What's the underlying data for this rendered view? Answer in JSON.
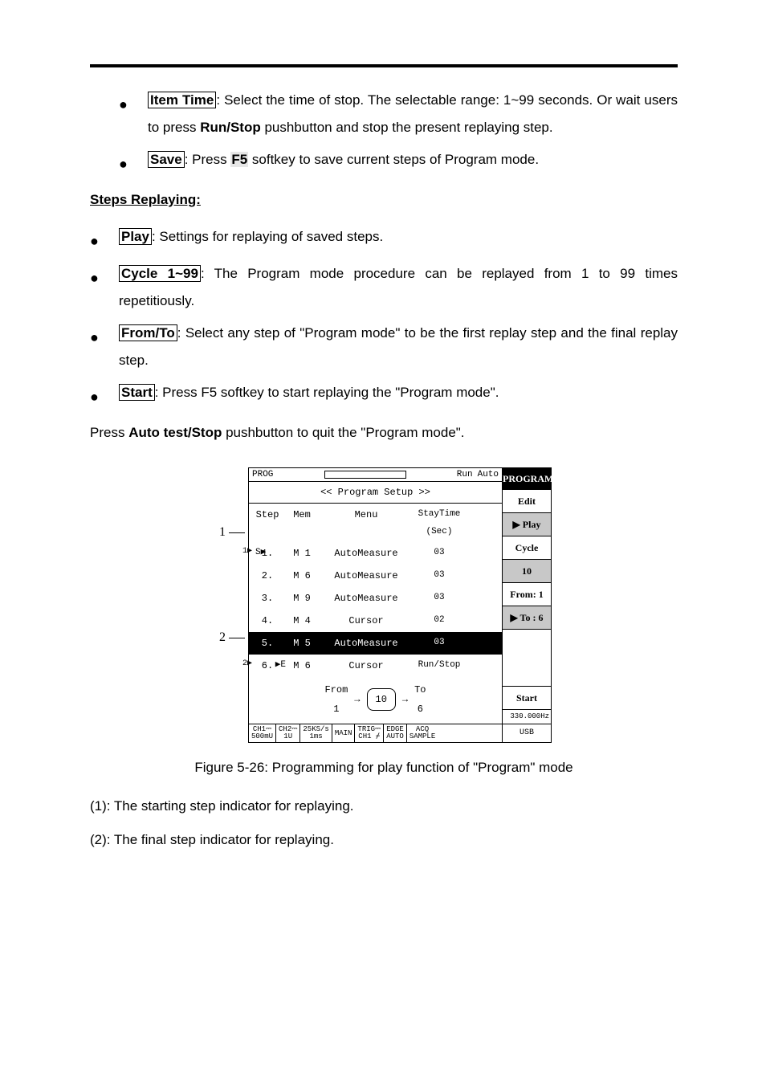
{
  "bullets1": [
    {
      "key": "Item Time",
      "text": ": Select the time of stop. The selectable range: 1~99 seconds. Or wait users to press ",
      "extra_bold": "Run/Stop",
      "tail": " pushbutton and stop the present replaying step."
    },
    {
      "key": "Save",
      "text": ": Press ",
      "hl": "F5",
      "tail": " softkey to save current steps of Program mode."
    }
  ],
  "section_title": "Steps Replaying:",
  "bullets2": [
    {
      "key": "Play",
      "text": ": Settings for replaying of saved steps."
    },
    {
      "key": "Cycle 1~99",
      "text": ": The Program mode procedure can be replayed from 1 to 99 times repetitiously."
    },
    {
      "key": "From/To",
      "text": ": Select any step of \"Program mode\" to be the first replay step and the final replay step."
    },
    {
      "key": "Start",
      "text": ": Press F5 softkey to start replaying the \"Program mode\"."
    }
  ],
  "press_line": {
    "pre": "Press ",
    "bold": "Auto test/Stop",
    "post": " pushbutton to quit the \"Program mode\"."
  },
  "screenshot": {
    "markers": {
      "m1": "1",
      "m2": "2"
    },
    "topbar": {
      "left_icon": "⎙",
      "prog": "PROG",
      "run": "Run",
      "auto": "Auto"
    },
    "setup_title": "<< Program Setup >>",
    "cols": {
      "step": "Step",
      "mem": "Mem",
      "menu": "Menu",
      "stay1": "StayTime",
      "stay2": "(Sec)"
    },
    "rows": [
      {
        "step": "1.",
        "mem": "M 1",
        "menu": "AutoMeasure",
        "stay": "03",
        "s_mark": "S▶",
        "inner": "1▶"
      },
      {
        "step": "2.",
        "mem": "M 6",
        "menu": "AutoMeasure",
        "stay": "03"
      },
      {
        "step": "3.",
        "mem": "M 9",
        "menu": "AutoMeasure",
        "stay": "03"
      },
      {
        "step": "4.",
        "mem": "M 4",
        "menu": "Cursor",
        "stay": "02"
      },
      {
        "step": "5.",
        "mem": "M 5",
        "menu": "AutoMeasure",
        "stay": "03",
        "selected": true
      },
      {
        "step": "6.",
        "mem": "M 6",
        "menu": "Cursor",
        "stay": "Run/Stop",
        "e_mark": "▶E",
        "inner": "2▶"
      }
    ],
    "fromto": {
      "from_lbl": "From",
      "from_val": "1",
      "mid": "10",
      "to_lbl": "To",
      "to_val": "6"
    },
    "bottombar": [
      {
        "l1": "CH1⎓",
        "l2": "500mU"
      },
      {
        "l1": "CH2⎓",
        "l2": "1U"
      },
      {
        "l1": "25KS/s",
        "l2": "1ms"
      },
      {
        "l1": "MAIN",
        "l2": ""
      },
      {
        "l1": "TRIG⎓",
        "l2": "CH1 ⌿"
      },
      {
        "l1": "EDGE",
        "l2": "AUTO"
      },
      {
        "l1": "ACQ",
        "l2": "SAMPLE"
      }
    ],
    "side": {
      "title": "PROGRAM",
      "btns": [
        {
          "label": "Edit",
          "active": false
        },
        {
          "label": "Play",
          "active": true,
          "arrow": "▶"
        },
        {
          "label": "Cycle",
          "active": false
        },
        {
          "label": "10",
          "active": true
        },
        {
          "label": "From: 1",
          "active": false
        },
        {
          "label": "To : 6",
          "active": true,
          "arrow": "▶"
        }
      ],
      "freq": "330.000Hz",
      "usb": "USB",
      "start": "Start"
    }
  },
  "caption": "Figure 5-26: Programming for play function of \"Program\" mode",
  "notes": [
    "(1): The starting step indicator for replaying.",
    "(2): The final step indicator for replaying."
  ]
}
